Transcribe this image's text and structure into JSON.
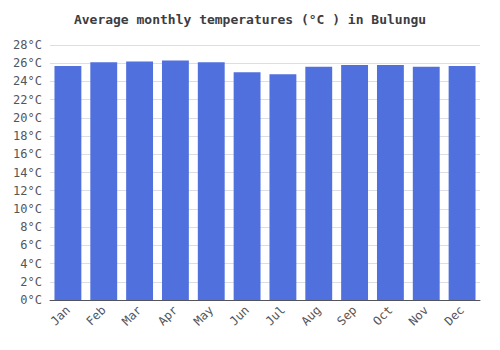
{
  "chart_data": {
    "type": "bar",
    "title": "Average monthly temperatures (°C ) in Bulungu",
    "categories": [
      "Jan",
      "Feb",
      "Mar",
      "Apr",
      "May",
      "Jun",
      "Jul",
      "Aug",
      "Sep",
      "Oct",
      "Nov",
      "Dec"
    ],
    "values": [
      25.7,
      26.1,
      26.2,
      26.3,
      26.1,
      25.0,
      24.8,
      25.6,
      25.8,
      25.8,
      25.6,
      25.7
    ],
    "ylim": [
      0,
      28
    ],
    "yticks": [
      {
        "value": 0,
        "label": "0°C"
      },
      {
        "value": 2,
        "label": "2°C"
      },
      {
        "value": 4,
        "label": "4°C"
      },
      {
        "value": 6,
        "label": "6°C"
      },
      {
        "value": 8,
        "label": "8°C"
      },
      {
        "value": 10,
        "label": "10°C"
      },
      {
        "value": 12,
        "label": "12°C"
      },
      {
        "value": 14,
        "label": "14°C"
      },
      {
        "value": 16,
        "label": "16°C"
      },
      {
        "value": 18,
        "label": "18°C"
      },
      {
        "value": 20,
        "label": "20°C"
      },
      {
        "value": 22,
        "label": "22°C"
      },
      {
        "value": 24,
        "label": "24°C"
      },
      {
        "value": 26,
        "label": "26°C"
      },
      {
        "value": 28,
        "label": "28°C"
      }
    ],
    "grid": true
  }
}
